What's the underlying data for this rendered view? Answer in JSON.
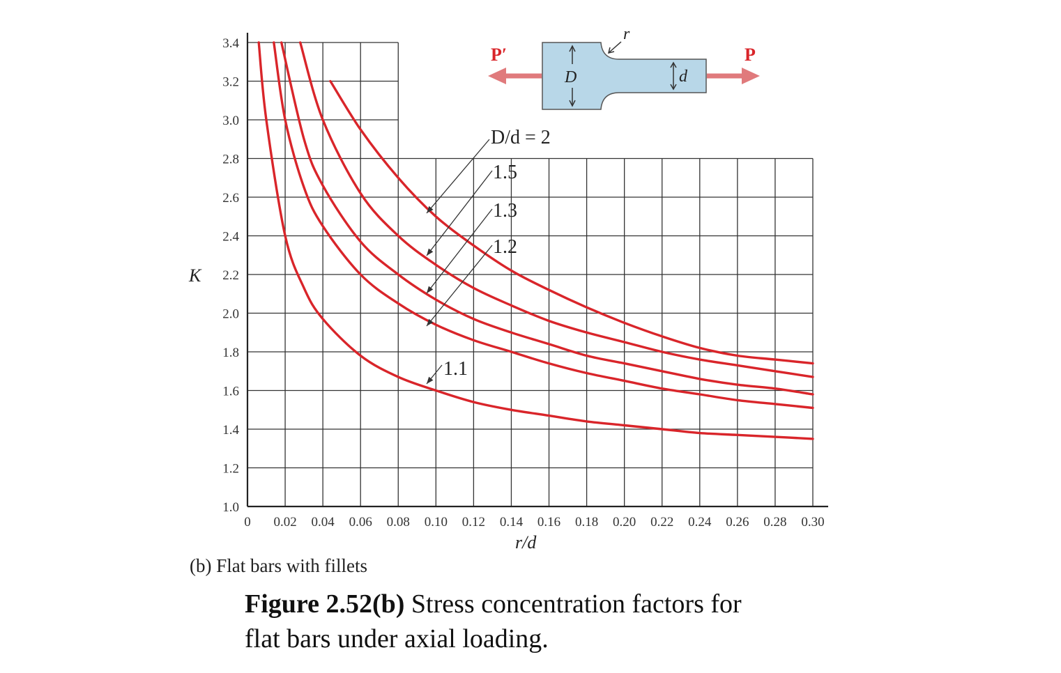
{
  "chart_data": {
    "type": "line",
    "xlabel": "r/d",
    "ylabel": "K",
    "xlim": [
      0,
      0.3
    ],
    "ylim": [
      1.0,
      3.4
    ],
    "grid": true,
    "x_ticks": [
      "0",
      "0.02",
      "0.04",
      "0.06",
      "0.08",
      "0.10",
      "0.12",
      "0.14",
      "0.16",
      "0.18",
      "0.20",
      "0.22",
      "0.24",
      "0.26",
      "0.28",
      "0.30"
    ],
    "y_ticks": [
      "1.0",
      "1.2",
      "1.4",
      "1.6",
      "1.8",
      "2.0",
      "2.2",
      "2.4",
      "2.6",
      "2.8",
      "3.0",
      "3.2",
      "3.4"
    ],
    "series": [
      {
        "name": "D/d = 2",
        "x": [
          0.044,
          0.06,
          0.08,
          0.1,
          0.12,
          0.14,
          0.16,
          0.18,
          0.2,
          0.22,
          0.24,
          0.26,
          0.28,
          0.3
        ],
        "y": [
          3.2,
          2.95,
          2.7,
          2.5,
          2.35,
          2.22,
          2.12,
          2.03,
          1.95,
          1.88,
          1.82,
          1.78,
          1.76,
          1.74
        ]
      },
      {
        "name": "1.5",
        "x": [
          0.028,
          0.04,
          0.06,
          0.08,
          0.1,
          0.12,
          0.14,
          0.16,
          0.18,
          0.2,
          0.22,
          0.24,
          0.26,
          0.28,
          0.3
        ],
        "y": [
          3.4,
          3.0,
          2.62,
          2.4,
          2.25,
          2.13,
          2.04,
          1.96,
          1.9,
          1.85,
          1.8,
          1.76,
          1.73,
          1.7,
          1.67
        ]
      },
      {
        "name": "1.3",
        "x": [
          0.018,
          0.03,
          0.04,
          0.06,
          0.08,
          0.1,
          0.12,
          0.14,
          0.16,
          0.18,
          0.2,
          0.22,
          0.24,
          0.26,
          0.28,
          0.3
        ],
        "y": [
          3.4,
          2.9,
          2.66,
          2.37,
          2.2,
          2.07,
          1.97,
          1.9,
          1.84,
          1.78,
          1.74,
          1.7,
          1.66,
          1.63,
          1.61,
          1.58
        ]
      },
      {
        "name": "1.2",
        "x": [
          0.014,
          0.02,
          0.03,
          0.04,
          0.06,
          0.08,
          0.1,
          0.12,
          0.14,
          0.16,
          0.18,
          0.2,
          0.22,
          0.24,
          0.26,
          0.28,
          0.3
        ],
        "y": [
          3.4,
          3.0,
          2.65,
          2.45,
          2.2,
          2.05,
          1.94,
          1.86,
          1.8,
          1.74,
          1.69,
          1.65,
          1.61,
          1.58,
          1.55,
          1.53,
          1.51
        ]
      },
      {
        "name": "1.1",
        "x": [
          0.006,
          0.01,
          0.02,
          0.03,
          0.04,
          0.06,
          0.08,
          0.1,
          0.12,
          0.14,
          0.16,
          0.18,
          0.2,
          0.22,
          0.24,
          0.26,
          0.28,
          0.3
        ],
        "y": [
          3.4,
          3.0,
          2.4,
          2.13,
          1.97,
          1.78,
          1.67,
          1.6,
          1.54,
          1.5,
          1.47,
          1.44,
          1.42,
          1.4,
          1.38,
          1.37,
          1.36,
          1.35
        ]
      }
    ],
    "curve_labels": [
      "D/d = 2",
      "1.5",
      "1.3",
      "1.2",
      "1.1"
    ],
    "colors": {
      "curve": "#d9252a",
      "grid": "#333333"
    }
  },
  "diagram": {
    "force_left": "P′",
    "force_right": "P",
    "label_D": "D",
    "label_d": "d",
    "label_r": "r",
    "bar_fill": "#b8d7e8",
    "arrow_color": "#e07a7c"
  },
  "subcaption": "(b) Flat bars with fillets",
  "caption": {
    "bold": "Figure 2.52(b)",
    "line1_rest": " Stress concentration factors for",
    "line2": "flat bars under axial loading."
  }
}
